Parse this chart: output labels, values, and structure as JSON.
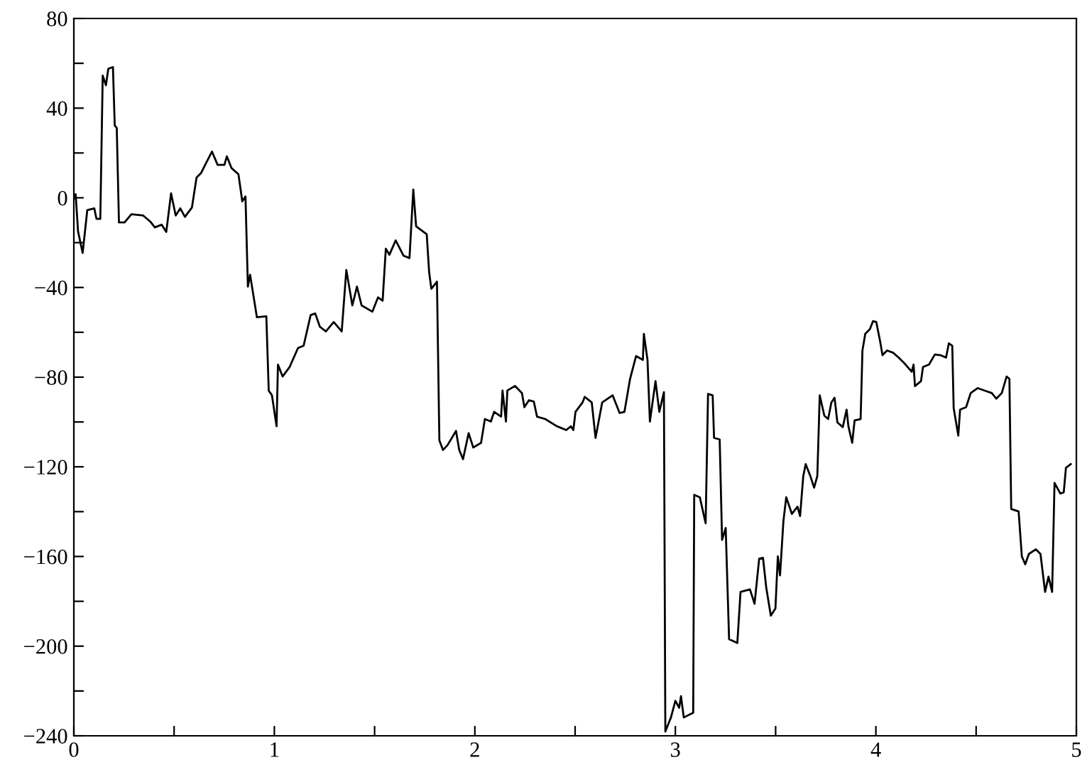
{
  "chart_data": {
    "type": "line",
    "xlim": [
      0,
      5
    ],
    "ylim": [
      -240,
      80
    ],
    "xticks": [
      0,
      {
        "value": 0.5,
        "label": null
      },
      1,
      {
        "value": 1.5,
        "label": null
      },
      2,
      {
        "value": 2.5,
        "label": null
      },
      3,
      {
        "value": 3.5,
        "label": null
      },
      4,
      {
        "value": 4.5,
        "label": null
      },
      5
    ],
    "yticks": [
      {
        "value": -240,
        "label": "−240"
      },
      {
        "value": -220,
        "label": null
      },
      {
        "value": -200,
        "label": "−200"
      },
      {
        "value": -180,
        "label": null
      },
      {
        "value": -160,
        "label": "−160"
      },
      {
        "value": -140,
        "label": null
      },
      {
        "value": -120,
        "label": "−120"
      },
      {
        "value": -100,
        "label": null
      },
      {
        "value": -80,
        "label": "−80"
      },
      {
        "value": -60,
        "label": null
      },
      {
        "value": -40,
        "label": "−40"
      },
      {
        "value": -20,
        "label": null
      },
      0,
      {
        "value": 20,
        "label": null
      },
      40,
      {
        "value": 60,
        "label": null
      },
      80
    ],
    "grid": false,
    "legend": false,
    "marker": "none",
    "line_style": "solid",
    "series": [
      {
        "color": "#000000",
        "x": [
          0.0,
          0.009,
          0.021,
          0.044,
          0.067,
          0.102,
          0.113,
          0.132,
          0.144,
          0.16,
          0.172,
          0.195,
          0.204,
          0.214,
          0.225,
          0.253,
          0.287,
          0.346,
          0.381,
          0.404,
          0.438,
          0.461,
          0.485,
          0.508,
          0.531,
          0.554,
          0.589,
          0.612,
          0.635,
          0.659,
          0.689,
          0.717,
          0.751,
          0.763,
          0.786,
          0.821,
          0.84,
          0.856,
          0.868,
          0.879,
          0.913,
          0.96,
          0.972,
          0.988,
          1.011,
          1.018,
          1.041,
          1.076,
          1.118,
          1.146,
          1.181,
          1.204,
          1.227,
          1.257,
          1.296,
          1.336,
          1.359,
          1.389,
          1.412,
          1.435,
          1.489,
          1.517,
          1.54,
          1.556,
          1.574,
          1.605,
          1.644,
          1.674,
          1.693,
          1.707,
          1.76,
          1.772,
          1.783,
          1.811,
          1.823,
          1.841,
          1.864,
          1.906,
          1.922,
          1.941,
          1.969,
          1.992,
          2.031,
          2.05,
          2.08,
          2.096,
          2.131,
          2.138,
          2.155,
          2.162,
          2.2,
          2.235,
          2.247,
          2.27,
          2.294,
          2.31,
          2.351,
          2.409,
          2.456,
          2.479,
          2.491,
          2.502,
          2.537,
          2.548,
          2.583,
          2.602,
          2.635,
          2.687,
          2.722,
          2.746,
          2.774,
          2.804,
          2.838,
          2.843,
          2.861,
          2.873,
          2.901,
          2.92,
          2.943,
          2.95,
          2.978,
          3.0,
          3.019,
          3.028,
          3.042,
          3.089,
          3.094,
          3.122,
          3.151,
          3.163,
          3.186,
          3.193,
          3.221,
          3.233,
          3.251,
          3.268,
          3.309,
          3.325,
          3.372,
          3.395,
          3.418,
          3.437,
          3.453,
          3.476,
          3.499,
          3.511,
          3.522,
          3.539,
          3.553,
          3.581,
          3.609,
          3.622,
          3.638,
          3.65,
          3.673,
          3.692,
          3.708,
          3.72,
          3.743,
          3.762,
          3.778,
          3.794,
          3.808,
          3.835,
          3.854,
          3.863,
          3.882,
          3.894,
          3.924,
          3.933,
          3.947,
          3.97,
          3.986,
          4.002,
          4.021,
          4.033,
          4.056,
          4.086,
          4.114,
          4.148,
          4.179,
          4.188,
          4.195,
          4.225,
          4.235,
          4.265,
          4.294,
          4.322,
          4.35,
          4.364,
          4.381,
          4.388,
          4.411,
          4.42,
          4.45,
          4.473,
          4.508,
          4.543,
          4.578,
          4.601,
          4.628,
          4.652,
          4.666,
          4.675,
          4.712,
          4.728,
          4.745,
          4.763,
          4.798,
          4.821,
          4.844,
          4.861,
          4.879,
          4.891,
          4.92,
          4.937,
          4.948,
          4.972
        ],
        "values": [
          -0.5,
          1.6,
          -15,
          -24.6,
          -5.5,
          -4.7,
          -9.4,
          -9.4,
          54.5,
          50.2,
          57.6,
          58.3,
          32.3,
          31.2,
          -11,
          -11,
          -7.3,
          -7.9,
          -10.6,
          -13.2,
          -12,
          -15.2,
          2,
          -7.9,
          -4.7,
          -8.5,
          -4.3,
          9,
          11.1,
          15.4,
          20.6,
          14.7,
          14.7,
          18.5,
          13.3,
          10.5,
          -1.6,
          0.6,
          -39.6,
          -34.3,
          -53.3,
          -52.9,
          -86,
          -88.1,
          -101.9,
          -74.4,
          -79.7,
          -75.5,
          -67,
          -66,
          -52.3,
          -51.6,
          -57.5,
          -59.6,
          -55.4,
          -59.6,
          -32.2,
          -48,
          -39.6,
          -48,
          -50.8,
          -44.4,
          -45.9,
          -22.7,
          -25.4,
          -19,
          -25.8,
          -26.9,
          3.7,
          -12.7,
          -16.3,
          -33.2,
          -40.6,
          -37.4,
          -108.2,
          -112.5,
          -110.3,
          -104,
          -112.5,
          -116.6,
          -105,
          -111.4,
          -109.3,
          -98.7,
          -99.8,
          -95.5,
          -97.6,
          -86,
          -99.8,
          -86,
          -83.9,
          -87.1,
          -93.4,
          -90.3,
          -90.9,
          -97.6,
          -98.7,
          -101.9,
          -103.6,
          -101.9,
          -103.6,
          -95.5,
          -91.3,
          -88.8,
          -91.3,
          -107.1,
          -91.3,
          -88.1,
          -96,
          -95.5,
          -80.8,
          -70.6,
          -72.3,
          -60.7,
          -72.3,
          -99.8,
          -81.8,
          -95.5,
          -86.7,
          -238.1,
          -231.8,
          -224.4,
          -227.5,
          -222.3,
          -231.8,
          -229.7,
          -132.5,
          -133.6,
          -145.2,
          -87.5,
          -88.1,
          -107.1,
          -107.8,
          -152.6,
          -147.3,
          -196.9,
          -198.6,
          -175.8,
          -174.7,
          -181.1,
          -161,
          -160.6,
          -173.7,
          -186.4,
          -183.2,
          -160,
          -168.4,
          -144.1,
          -133.6,
          -141,
          -137.8,
          -142,
          -124.1,
          -118.8,
          -124.1,
          -129.3,
          -124.1,
          -88.1,
          -97.2,
          -98.7,
          -91.3,
          -89.2,
          -100.2,
          -102.3,
          -94.5,
          -101.9,
          -109.3,
          -99.3,
          -98.7,
          -68.1,
          -60.7,
          -58.6,
          -55,
          -55.4,
          -63.9,
          -70.2,
          -68.1,
          -69.1,
          -71.3,
          -74.4,
          -77.6,
          -74.4,
          -84,
          -81.8,
          -75.5,
          -74.4,
          -69.9,
          -70.2,
          -71.3,
          -64.9,
          -66,
          -93.8,
          -106.1,
          -94.5,
          -93.4,
          -87.1,
          -84.9,
          -86,
          -87.1,
          -89.6,
          -87.1,
          -79.7,
          -80.8,
          -138.8,
          -139.9,
          -160,
          -163.5,
          -158.9,
          -156.8,
          -158.9,
          -175.8,
          -169,
          -175.8,
          -127.2,
          -131.9,
          -131.4,
          -120.4,
          -118.8
        ]
      }
    ]
  }
}
